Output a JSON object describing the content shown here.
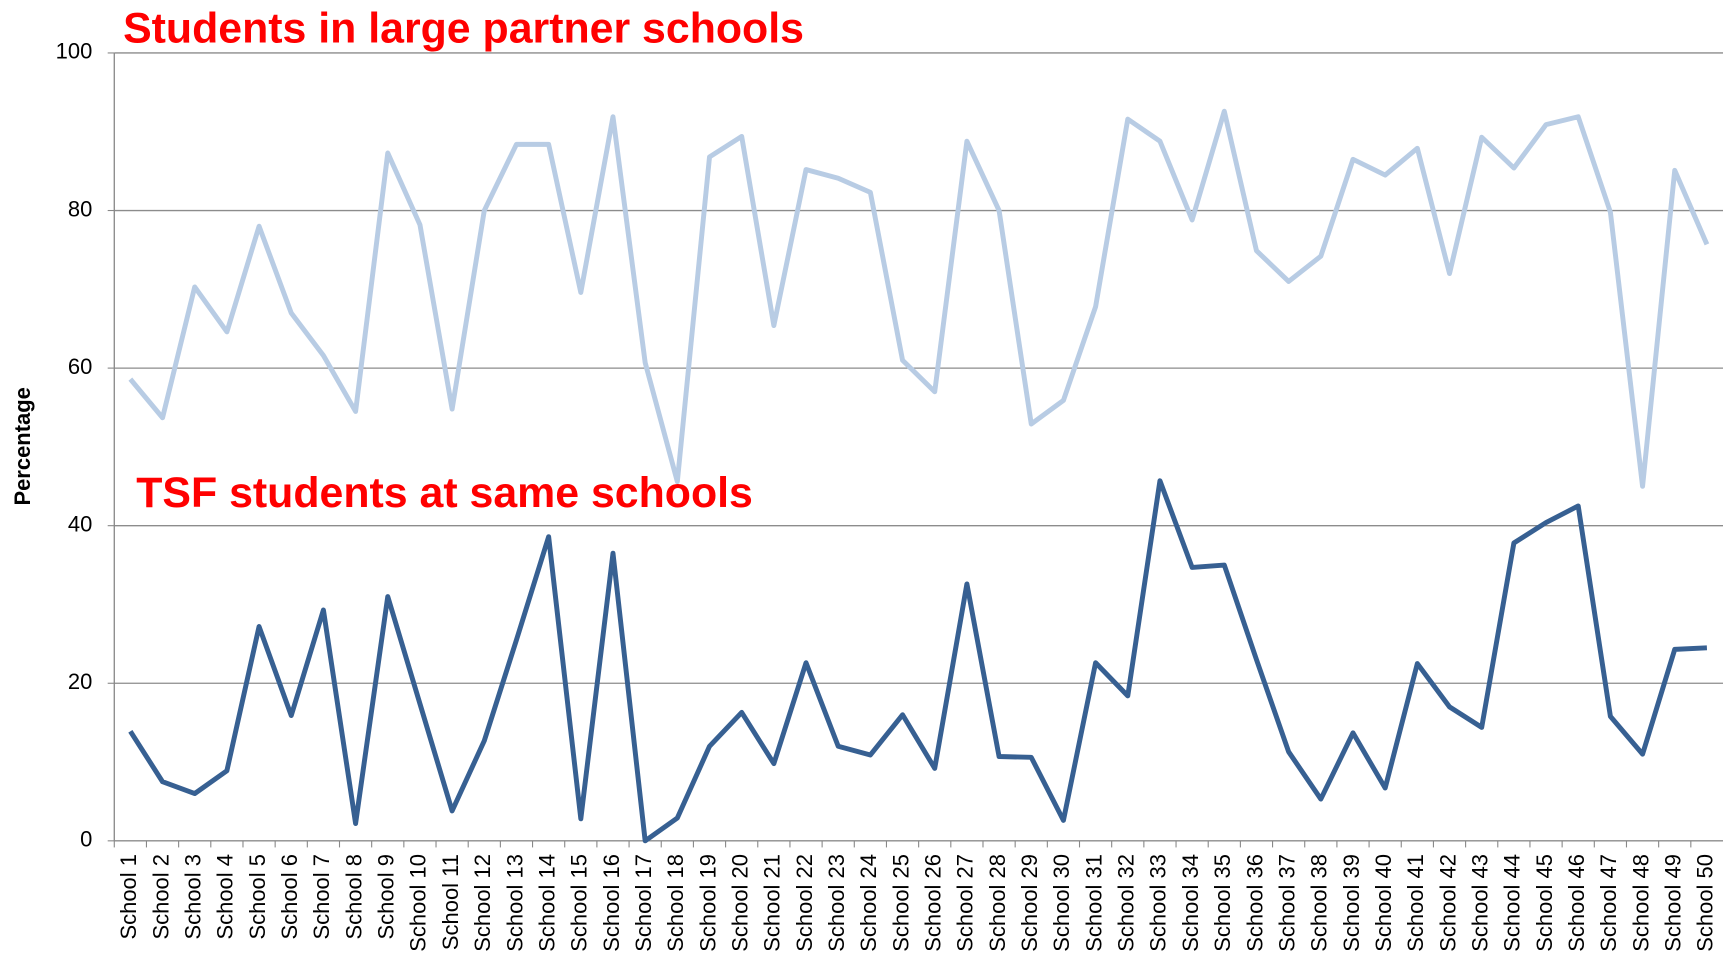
{
  "chart_data": {
    "type": "line",
    "y_label": "Percentage",
    "categories": [
      "School 1",
      "School 2",
      "School 3",
      "School 4",
      "School 5",
      "School 6",
      "School 7",
      "School 8",
      "School 9",
      "School 10",
      "School 11",
      "School 12",
      "School 13",
      "School 14",
      "School 15",
      "School 16",
      "School 17",
      "School 18",
      "School 19",
      "School 20",
      "School 21",
      "School 22",
      "School 23",
      "School 24",
      "School 25",
      "School 26",
      "School 27",
      "School 28",
      "School 29",
      "School 30",
      "School 31",
      "School 32",
      "School 33",
      "School 34",
      "School 35",
      "School 36",
      "School 37",
      "School 38",
      "School 39",
      "School 40",
      "School 41",
      "School 42",
      "School 43",
      "School 44",
      "School 45",
      "School 46",
      "School 47",
      "School 48",
      "School 49",
      "School 50"
    ],
    "series": [
      {
        "name": "Students in large partner schools",
        "color": "#b8cce4",
        "values": [
          58.6,
          53.7,
          70.3,
          64.6,
          78,
          67,
          61.6,
          54.5,
          87.3,
          78.2,
          54.8,
          80,
          88.4,
          88.4,
          69.6,
          91.9,
          60.7,
          45.6,
          86.8,
          89.4,
          65.4,
          85.2,
          84.1,
          82.3,
          61,
          57,
          88.8,
          80,
          52.9,
          55.9,
          67.8,
          91.6,
          88.8,
          78.8,
          92.6,
          74.9,
          71,
          74.2,
          86.5,
          84.5,
          87.9,
          72,
          89.3,
          85.4,
          90.9,
          91.9,
          79.8,
          45,
          85.1,
          75.7
        ]
      },
      {
        "name": "TSF students at same schools",
        "color": "#376092",
        "values": [
          13.9,
          7.5,
          6,
          8.9,
          27.2,
          15.9,
          29.3,
          2.2,
          31,
          17.4,
          3.8,
          12.7,
          25.5,
          38.6,
          2.8,
          36.5,
          0,
          2.9,
          12,
          16.3,
          9.8,
          22.6,
          12,
          10.9,
          16,
          9.2,
          32.6,
          10.7,
          10.6,
          2.6,
          22.6,
          18.4,
          45.7,
          34.7,
          35,
          23,
          11.3,
          5.3,
          13.7,
          6.7,
          22.5,
          17,
          14.4,
          37.8,
          40.4,
          42.5,
          15.8,
          11,
          24.3,
          24.5
        ]
      }
    ],
    "ylim": [
      0,
      100
    ],
    "yticks": [
      0,
      20,
      40,
      60,
      80,
      100
    ],
    "grid": true
  }
}
